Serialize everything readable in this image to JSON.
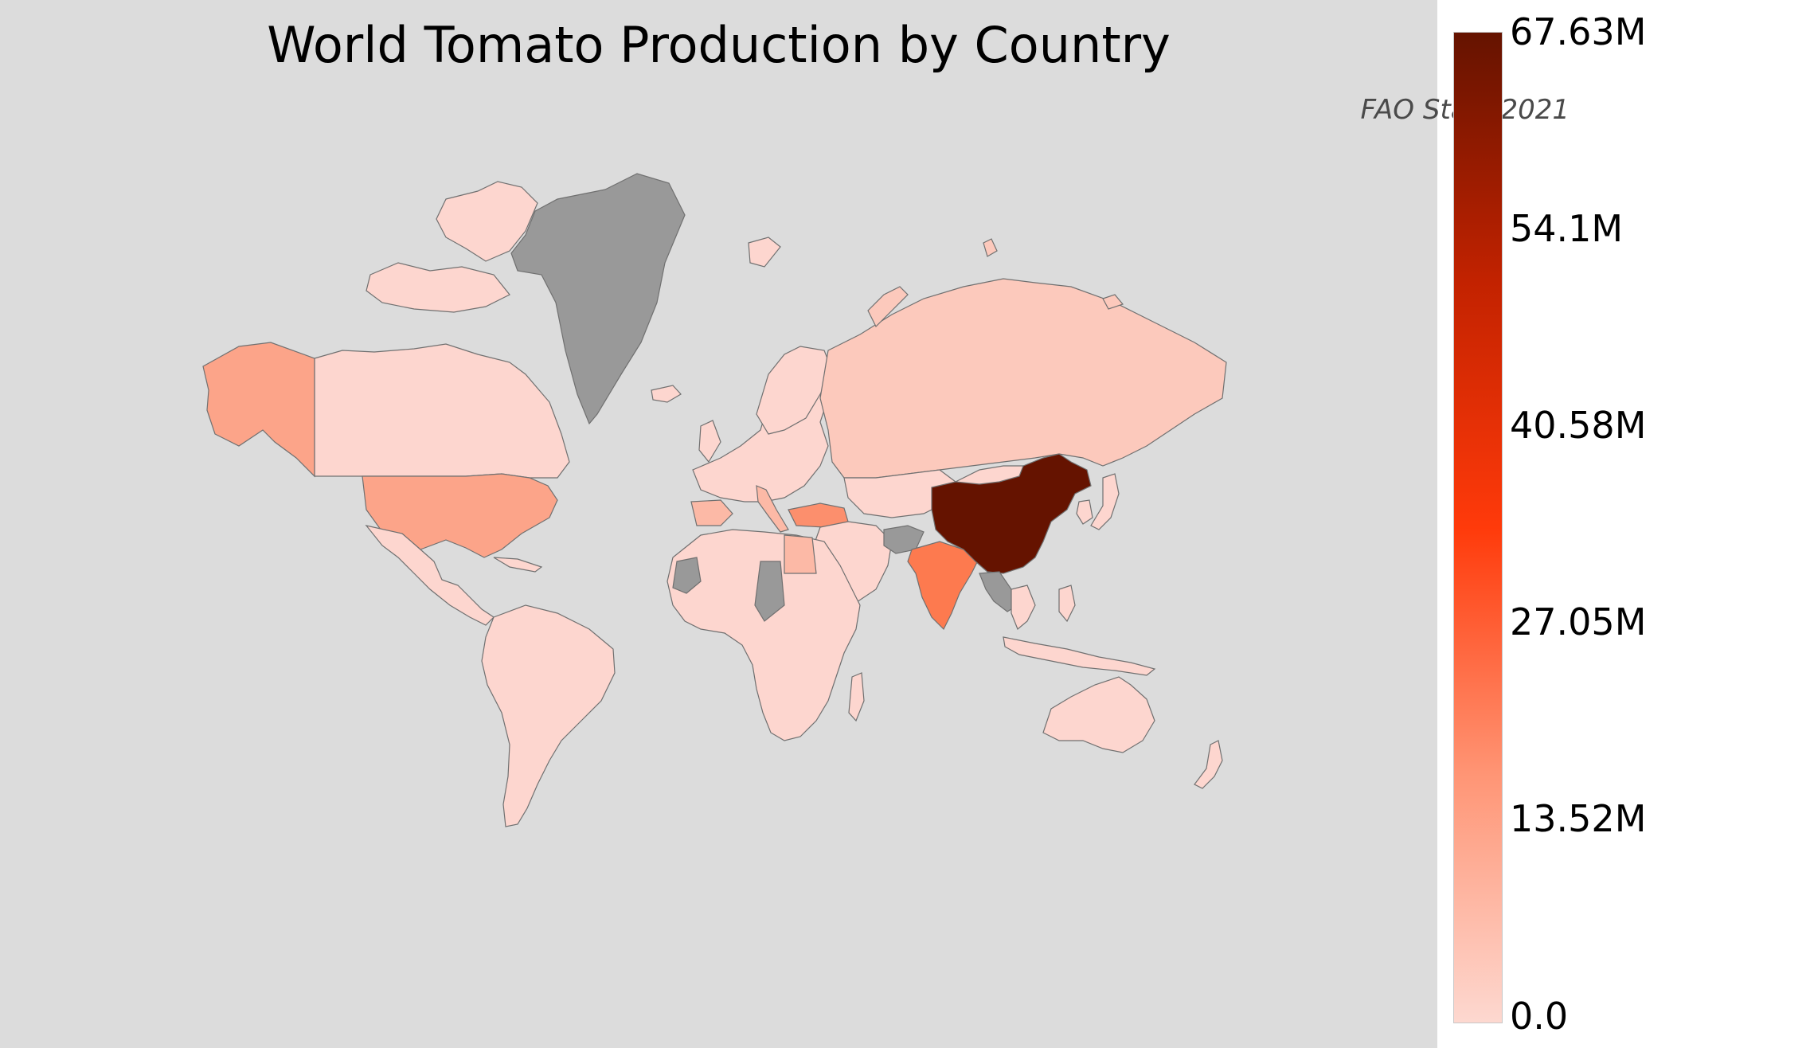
{
  "map": {
    "title": "World Tomato Production by Country",
    "subtitle": "FAO Stats 2021",
    "background_color": "#dcdcdc",
    "no_data_color": "#999999",
    "border_color": "#707070"
  },
  "chart_data": {
    "type": "choropleth",
    "title": "World Tomato Production by Country",
    "subtitle": "FAO Stats 2021",
    "colorscale": [
      "#fdd8d0",
      "#ff9575",
      "#ff3a0a",
      "#c22200",
      "#651300"
    ],
    "colorbar": {
      "min": 0,
      "max": 67.63,
      "unit": "M",
      "tick_labels": [
        "67.63M",
        "54.1M",
        "40.58M",
        "27.05M",
        "13.52M",
        "0.0"
      ],
      "tick_values": [
        67.63,
        54.1,
        40.58,
        27.05,
        13.52,
        0
      ]
    }
  }
}
